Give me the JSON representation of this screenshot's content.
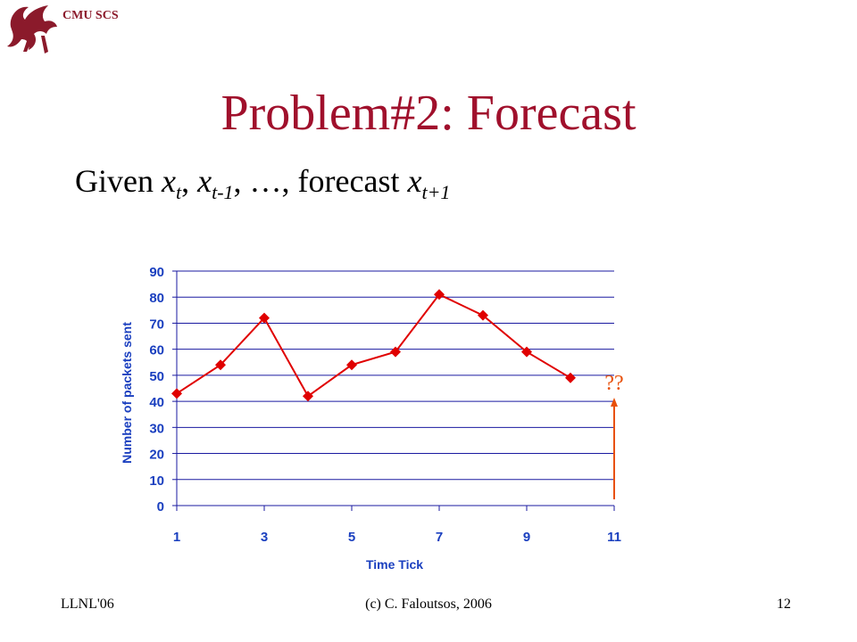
{
  "header": {
    "org_label": "CMU SCS"
  },
  "slide": {
    "title": "Problem#2: Forecast",
    "subtitle": {
      "given": "Given ",
      "x": "x",
      "sub_t": "t",
      "sep1": ", ",
      "sub_t_minus_1": "t-1",
      "sep2": ", …, forecast ",
      "sub_t_plus_1": "t+1"
    }
  },
  "chart_data": {
    "type": "line",
    "title": "",
    "xlabel": "Time Tick",
    "ylabel": "Number of packets sent",
    "xlim": [
      1,
      11
    ],
    "ylim": [
      0,
      90
    ],
    "x_ticks": [
      1,
      3,
      5,
      7,
      9,
      11
    ],
    "y_ticks": [
      0,
      10,
      20,
      30,
      40,
      50,
      60,
      70,
      80,
      90
    ],
    "grid": true,
    "series": [
      {
        "x": [
          1,
          2,
          3,
          4,
          5,
          6,
          7,
          8,
          9,
          10
        ],
        "values": [
          43,
          54,
          72,
          42,
          54,
          59,
          81,
          73,
          59,
          49
        ],
        "color": "#e00000",
        "marker": "diamond"
      }
    ],
    "annotation": {
      "text": "??",
      "x": 11,
      "color": "#e8500a"
    }
  },
  "footer": {
    "left": "LLNL'06",
    "center": "(c) C. Faloutsos, 2006",
    "right": "12"
  }
}
